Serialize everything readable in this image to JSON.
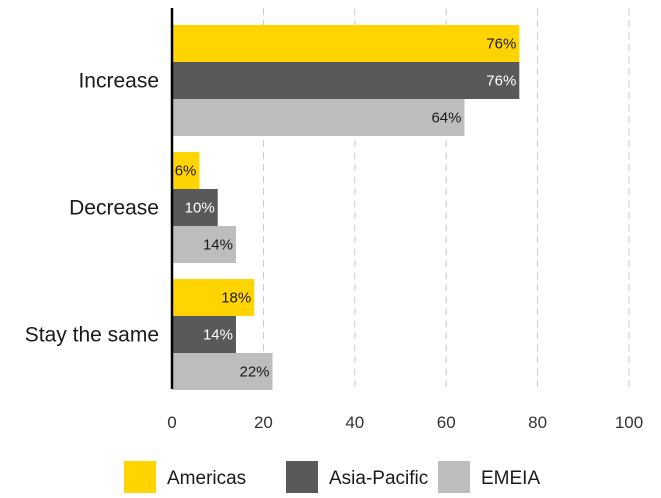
{
  "chart_data": {
    "type": "bar",
    "orientation": "horizontal",
    "categories": [
      "Increase",
      "Decrease",
      "Stay the same"
    ],
    "series": [
      {
        "name": "Americas",
        "values": [
          76,
          6,
          18
        ],
        "labels": [
          "76%",
          "6%",
          "18%"
        ],
        "color": "#FFD400",
        "label_color": "#1a1a1a"
      },
      {
        "name": "Asia-Pacific",
        "values": [
          76,
          10,
          14
        ],
        "labels": [
          "76%",
          "10%",
          "14%"
        ],
        "color": "#58595B",
        "label_color": "#ffffff"
      },
      {
        "name": "EMEIA",
        "values": [
          64,
          14,
          22
        ],
        "labels": [
          "64%",
          "14%",
          "22%"
        ],
        "color": "#BDBDBF",
        "label_color": "#1a1a1a"
      }
    ],
    "xlim": [
      0,
      100
    ],
    "xticks": [
      0,
      20,
      40,
      60,
      80,
      100
    ],
    "xtick_labels": [
      "0",
      "20",
      "40",
      "60",
      "80",
      "100"
    ],
    "grid": "vertical dashed",
    "legend_position": "bottom"
  }
}
